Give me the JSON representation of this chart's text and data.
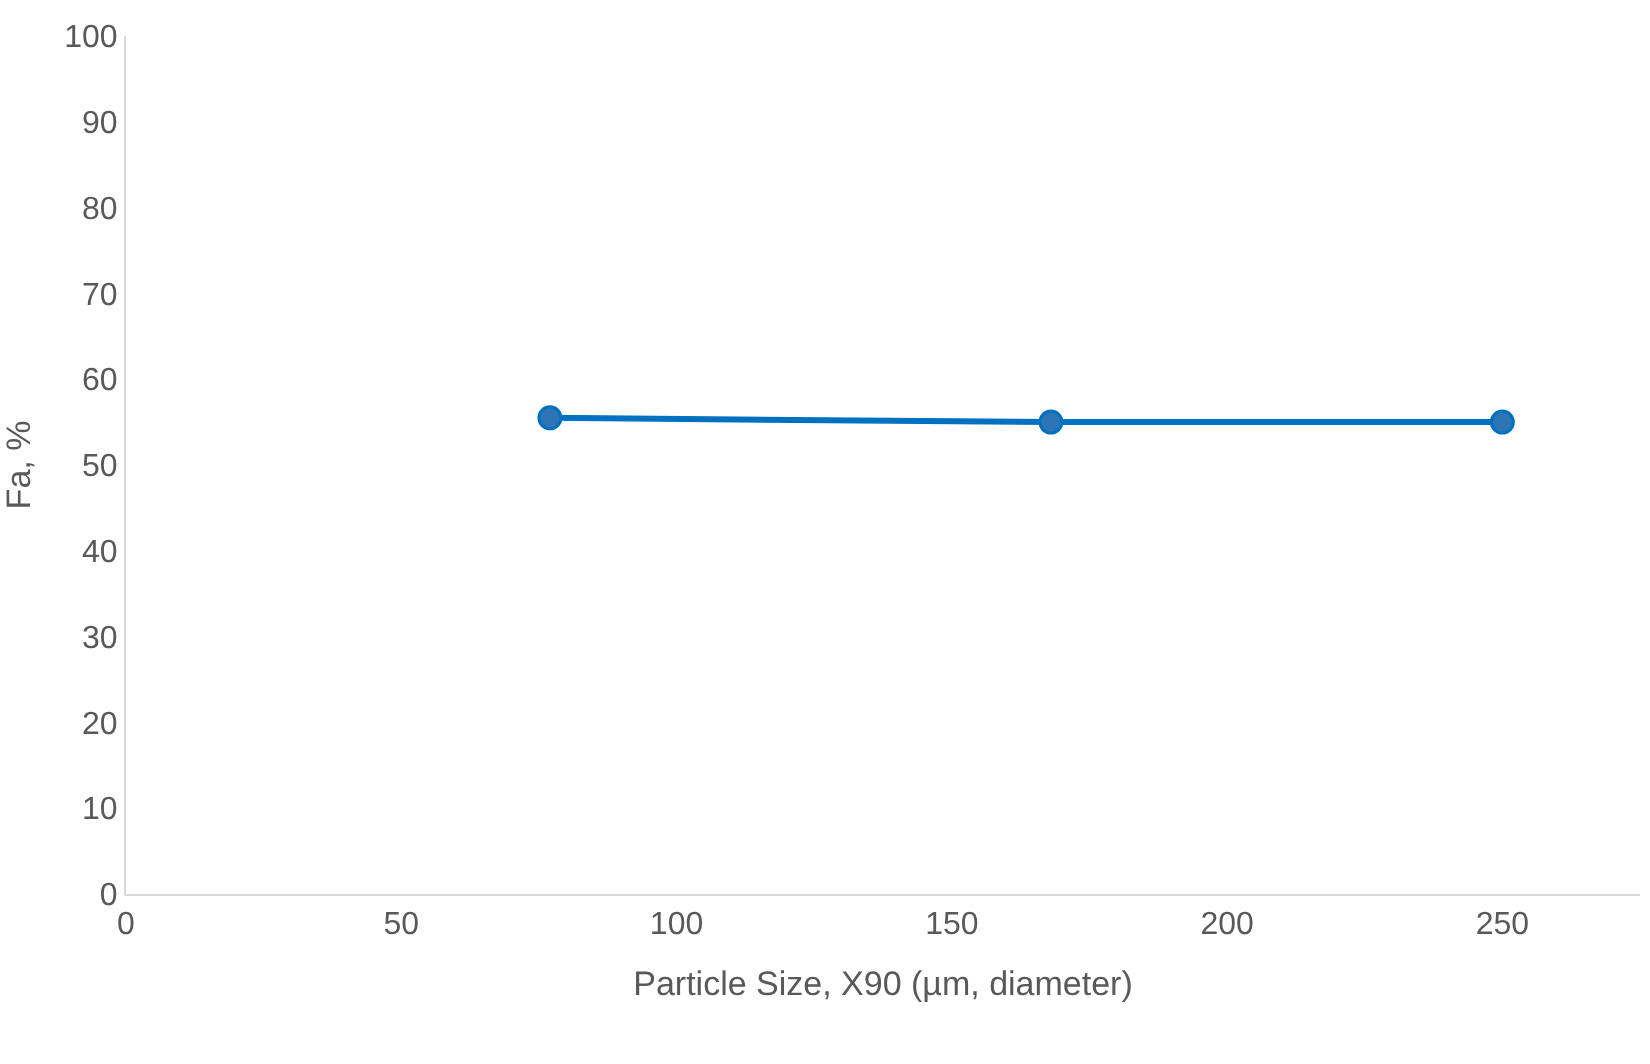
{
  "chart_data": {
    "type": "line",
    "xlabel": "Particle Size, X90 (µm, diameter)",
    "ylabel": "Fa, %",
    "x": [
      77,
      168,
      250
    ],
    "series": [
      {
        "color": "#0070c0",
        "values": [
          55.5,
          55,
          55
        ]
      }
    ],
    "xlim": [
      0,
      275
    ],
    "xticks": [
      0,
      50,
      100,
      150,
      200,
      250
    ],
    "ylim": [
      0,
      100
    ],
    "yticks": [
      0,
      10,
      20,
      30,
      40,
      50,
      60,
      70,
      80,
      90,
      100
    ],
    "marker": "circle",
    "line_style": "solid"
  }
}
